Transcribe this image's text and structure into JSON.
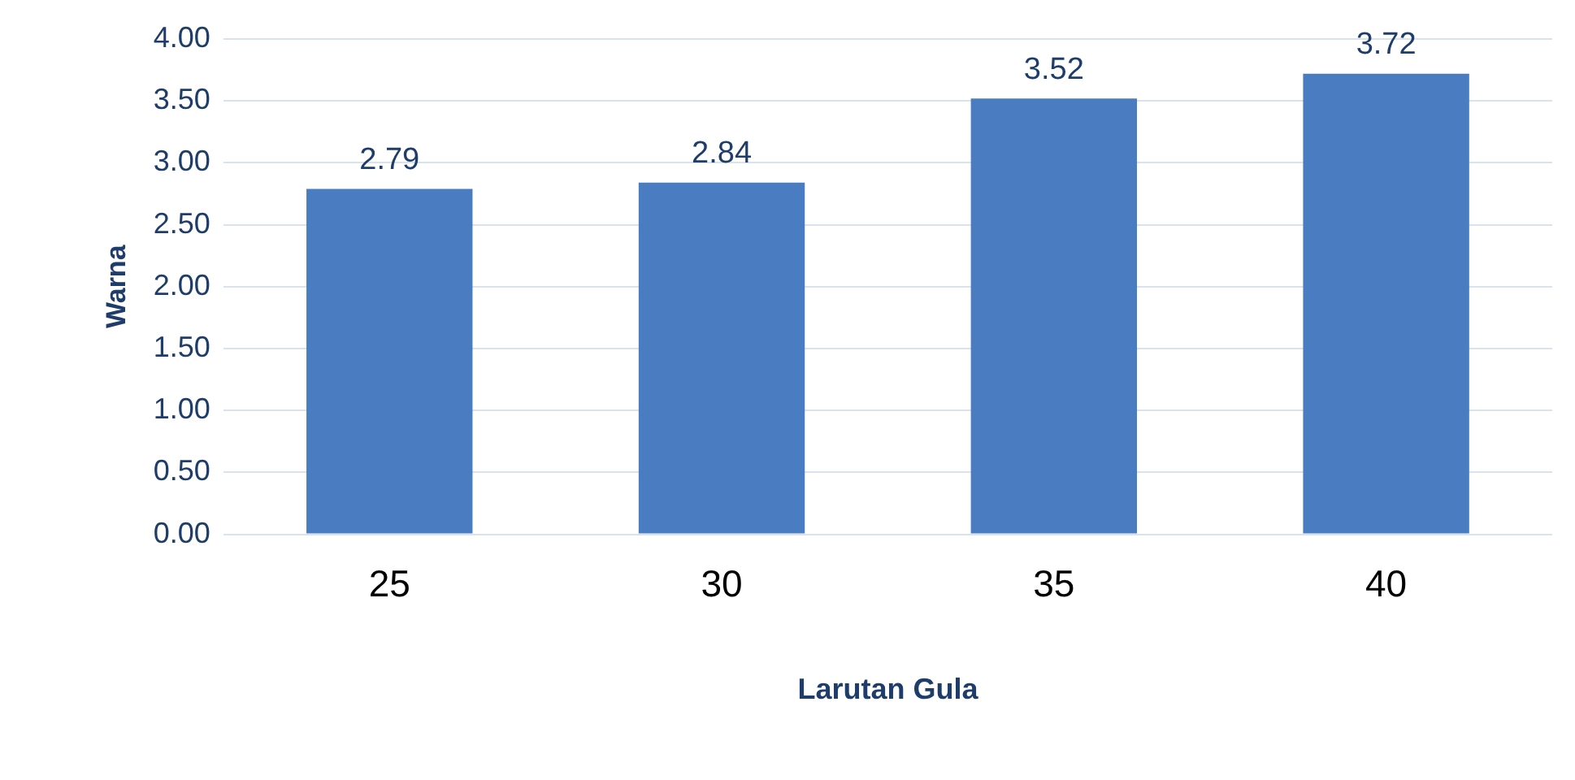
{
  "chart_data": {
    "type": "bar",
    "xlabel": "Larutan Gula",
    "ylabel": "Warna",
    "categories": [
      "25",
      "30",
      "35",
      "40"
    ],
    "values": [
      2.79,
      2.84,
      3.52,
      3.72
    ],
    "color": "#4a7cc2",
    "ylim": [
      0,
      4
    ],
    "yticks": [
      {
        "value": 0,
        "label": "0.00"
      },
      {
        "value": 0.5,
        "label": "0.50"
      },
      {
        "value": 1,
        "label": "1.00"
      },
      {
        "value": 1.5,
        "label": "1.50"
      },
      {
        "value": 2,
        "label": "2.00"
      },
      {
        "value": 2.5,
        "label": "2.50"
      },
      {
        "value": 3,
        "label": "3.00"
      },
      {
        "value": 3.5,
        "label": "3.50"
      },
      {
        "value": 4,
        "label": "4.00"
      }
    ],
    "grid": "y",
    "data_labels": true,
    "legend": false
  }
}
